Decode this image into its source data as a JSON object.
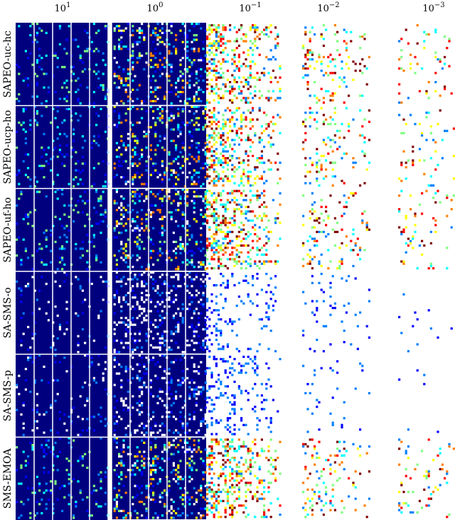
{
  "chart_data": {
    "type": "heatmap",
    "title": "",
    "xlabel": "",
    "ylabel": "",
    "x_scale": "log-descending",
    "x_ticks": [
      {
        "base": "10",
        "exp": "1",
        "value": 10
      },
      {
        "base": "10",
        "exp": "0",
        "value": 1
      },
      {
        "base": "10",
        "exp": "−1",
        "value": 0.1
      },
      {
        "base": "10",
        "exp": "−2",
        "value": 0.01
      },
      {
        "base": "10",
        "exp": "−3",
        "value": 0.001
      }
    ],
    "colormap": "jet",
    "colormap_colors": [
      "#00007f",
      "#0000ff",
      "#007fff",
      "#00ffff",
      "#7fff7f",
      "#ffff00",
      "#ff7f00",
      "#ff0000",
      "#7f0000"
    ],
    "background_color": "#00007f",
    "grid": true,
    "rows": [
      {
        "label": "SAPEO-uc-hc",
        "density": "high"
      },
      {
        "label": "SAPEO-ucp-ho",
        "density": "high"
      },
      {
        "label": "SAPEO-uf-ho",
        "density": "high"
      },
      {
        "label": "SA-SMS-o",
        "density": "low"
      },
      {
        "label": "SA-SMS-p",
        "density": "low"
      },
      {
        "label": "SMS-EMOA",
        "density": "high"
      }
    ]
  }
}
